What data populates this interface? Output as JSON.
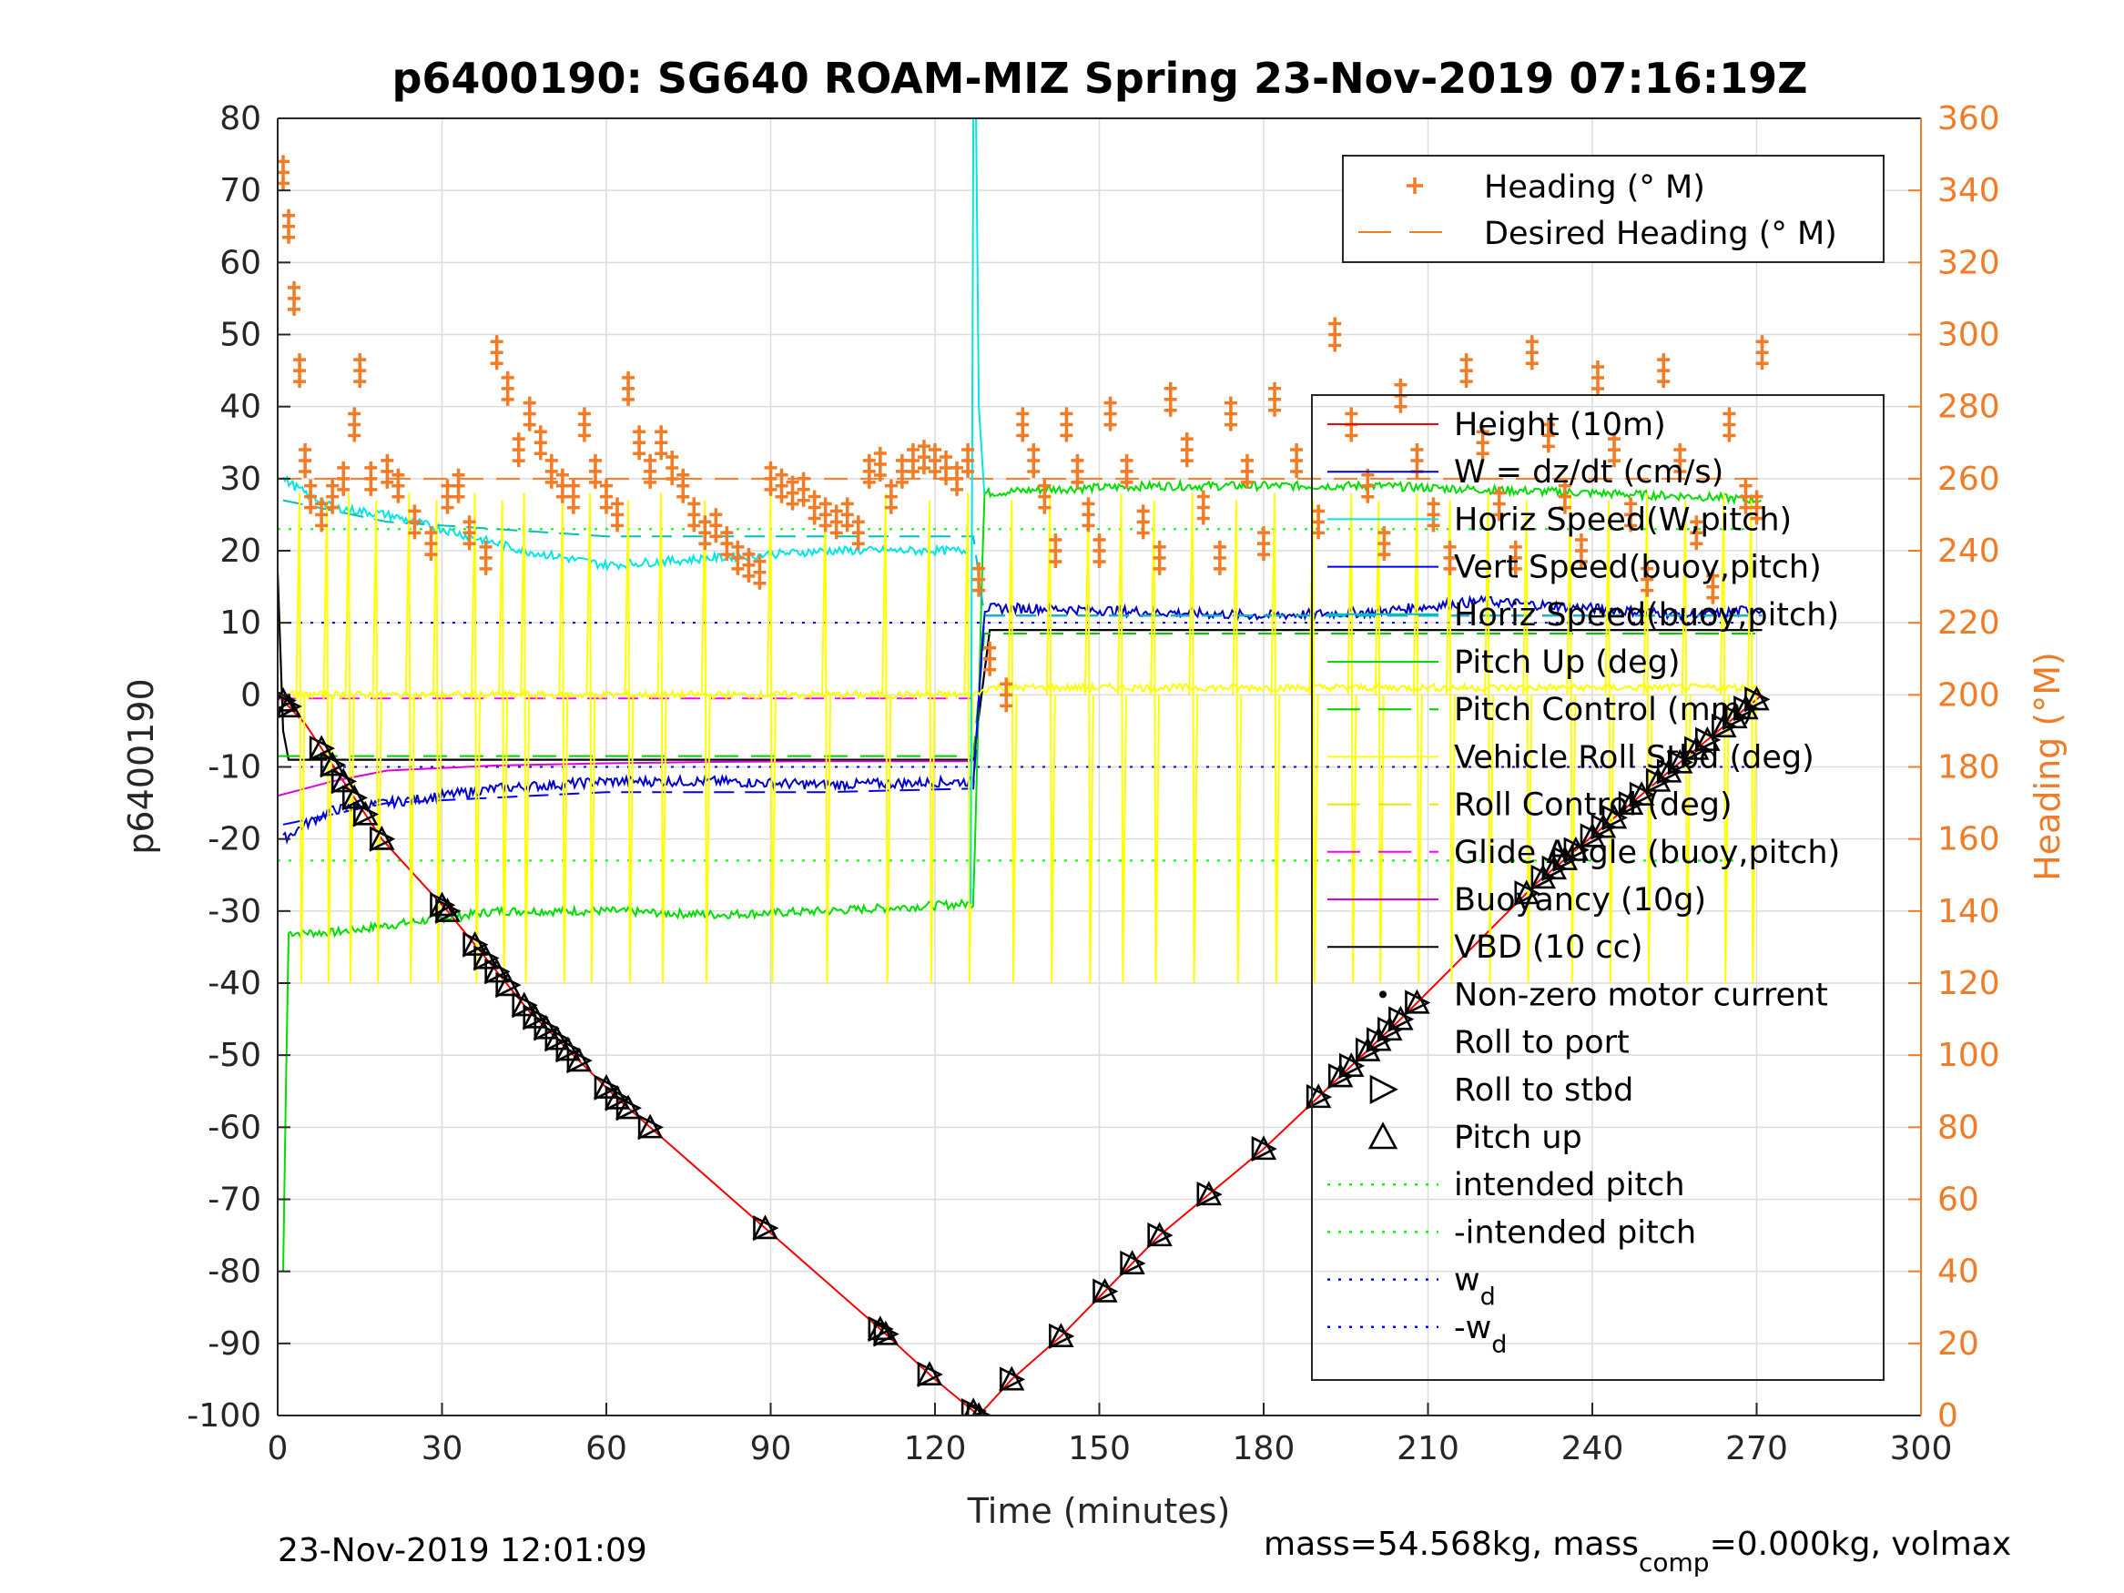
{
  "chart_data": {
    "type": "line",
    "title": "p6400190: SG640 ROAM-MIZ Spring 23-Nov-2019 07:16:19Z",
    "xlabel": "Time (minutes)",
    "ylabel": "p6400190",
    "y2label": "Heading (°M)",
    "xlim": [
      0,
      300
    ],
    "ylim": [
      -100,
      80
    ],
    "y2lim": [
      0,
      360
    ],
    "xticks": [
      "0",
      "30",
      "60",
      "90",
      "120",
      "150",
      "180",
      "210",
      "240",
      "270",
      "300"
    ],
    "yticks": [
      "80",
      "70",
      "60",
      "50",
      "40",
      "30",
      "20",
      "10",
      "0",
      "-10",
      "-20",
      "-30",
      "-40",
      "-50",
      "-60",
      "-70",
      "-80",
      "-90",
      "-100"
    ],
    "y2ticks": [
      "360",
      "340",
      "320",
      "300",
      "280",
      "260",
      "240",
      "220",
      "200",
      "180",
      "160",
      "140",
      "120",
      "100",
      "80",
      "60",
      "40",
      "20",
      "0"
    ],
    "grid": true,
    "footer_left": "23-Nov-2019 12:01:09",
    "footer_right": {
      "prefix": "mass=54.568kg, mass",
      "sub": "comp",
      "suffix": "=0.000kg, volmax"
    },
    "legend_heading": {
      "placement": "top-right",
      "entries": [
        "Heading (° M)",
        "Desired Heading (° M)"
      ]
    },
    "legend_main": {
      "placement": "right",
      "entries": [
        "Height (10m)",
        "W = dz/dt (cm/s)",
        "Horiz Speed(W,pitch)",
        "Vert Speed(buoy,pitch)",
        "Horiz Speed(buoy,pitch)",
        "Pitch Up (deg)",
        "Pitch Control (mm)",
        "Vehicle Roll Stbd (deg)",
        "Roll Control (deg)",
        "Glide Angle (buoy,pitch)",
        "Buoyancy (10g)",
        "VBD (10 cc)",
        "Non-zero motor current",
        "Roll to port",
        "Roll to stbd",
        "Pitch up",
        "intended pitch",
        "-intended pitch",
        "w",
        "-w"
      ],
      "w_subscript": "d"
    },
    "colors": {
      "height": "#ff0000",
      "w": "#0000cd",
      "horiz_w": "#00e5e5",
      "vert_buoy": "#0000ff",
      "horiz_buoy": "#00bfbf",
      "pitch": "#00dd00",
      "pitch_ctrl": "#00cc00",
      "roll": "#ffff00",
      "roll_ctrl": "#e6e600",
      "glide": "#ff00ff",
      "buoyancy": "#dd00dd",
      "vbd": "#000000",
      "heading": "#f27b26",
      "desired_heading": "#f27b26",
      "intended": "#00ff00",
      "wd": "#0000ff"
    },
    "series": [
      {
        "name": "Height (10m)",
        "x": [
          0,
          5,
          19,
          31,
          46,
          62,
          89,
          110,
          120,
          128,
          134,
          143,
          161,
          180,
          205,
          230,
          255,
          271
        ],
        "values": [
          0,
          -4,
          -20,
          -30,
          -44,
          -56,
          -74,
          -88,
          -95,
          -100,
          -95,
          -89,
          -75,
          -63,
          -45,
          -26,
          -10,
          0
        ]
      },
      {
        "name": "VBD (10 cc)",
        "x": [
          0,
          1,
          2,
          127,
          130,
          271
        ],
        "values": [
          17,
          -5,
          -9,
          -9,
          9,
          9
        ]
      },
      {
        "name": "Buoyancy (10g)",
        "x": [
          0,
          5,
          10,
          20,
          40,
          60,
          80,
          100,
          127
        ],
        "values": [
          -14,
          -13,
          -12,
          -10.5,
          -9.8,
          -9.5,
          -9.3,
          -9.2,
          -9.2
        ]
      },
      {
        "name": "Glide Angle (buoy,pitch)",
        "x": [
          0,
          127
        ],
        "values": [
          -0.5,
          -0.5
        ]
      },
      {
        "name": "Pitch Up (deg)",
        "x": [
          2,
          10,
          20,
          30,
          40,
          60,
          80,
          100,
          126,
          127,
          129,
          140,
          160,
          180,
          200,
          220,
          240,
          260,
          271
        ],
        "values": [
          -33,
          -33,
          -32,
          -31,
          -30,
          -30,
          -30.5,
          -30,
          -29,
          -29,
          28,
          28.5,
          29,
          29,
          29,
          28.5,
          28,
          27.5,
          27
        ]
      },
      {
        "name": "Pitch Control (mm)",
        "x": [
          0,
          127,
          129,
          271
        ],
        "values": [
          -8.5,
          -8.5,
          8.5,
          8.5
        ]
      },
      {
        "name": "W = dz/dt (cm/s)",
        "x": [
          1,
          5,
          10,
          20,
          40,
          60,
          80,
          100,
          127,
          129,
          140,
          160,
          180,
          200,
          220,
          240,
          260,
          271
        ],
        "values": [
          -20,
          -18,
          -16,
          -15,
          -13,
          -12,
          -12,
          -12.5,
          -12,
          12,
          12,
          11.5,
          11,
          11.5,
          13,
          12,
          11,
          12
        ]
      },
      {
        "name": "Vert Speed(buoy,pitch)",
        "x": [
          1,
          20,
          60,
          100,
          127,
          129,
          200,
          271
        ],
        "values": [
          -18,
          -15,
          -13.5,
          -13.5,
          -13,
          11,
          11,
          11
        ]
      },
      {
        "name": "Horiz Speed(W,pitch)",
        "x": [
          1,
          5,
          10,
          20,
          30,
          45,
          60,
          80,
          100,
          126
        ],
        "values": [
          30,
          28,
          26,
          25,
          23,
          20,
          18,
          19,
          20,
          20
        ]
      },
      {
        "name": "Horiz Speed(buoy,pitch)",
        "x": [
          1,
          20,
          60,
          127,
          129,
          271
        ],
        "values": [
          27,
          24,
          22,
          22,
          11,
          11
        ]
      },
      {
        "name": "Vehicle Roll Stbd (deg)",
        "x": [
          0,
          127,
          130,
          271
        ],
        "values": [
          0,
          0,
          1,
          1
        ]
      }
    ],
    "heading_points_deg": [
      [
        1,
        345
      ],
      [
        2,
        330
      ],
      [
        3,
        310
      ],
      [
        4,
        290
      ],
      [
        5,
        265
      ],
      [
        6,
        255
      ],
      [
        8,
        250
      ],
      [
        10,
        255
      ],
      [
        12,
        260
      ],
      [
        14,
        275
      ],
      [
        15,
        290
      ],
      [
        17,
        260
      ],
      [
        20,
        262
      ],
      [
        22,
        258
      ],
      [
        25,
        248
      ],
      [
        28,
        242
      ],
      [
        31,
        255
      ],
      [
        33,
        258
      ],
      [
        35,
        245
      ],
      [
        38,
        238
      ],
      [
        40,
        295
      ],
      [
        42,
        285
      ],
      [
        44,
        268
      ],
      [
        46,
        278
      ],
      [
        48,
        270
      ],
      [
        50,
        262
      ],
      [
        52,
        258
      ],
      [
        54,
        255
      ],
      [
        56,
        275
      ],
      [
        58,
        262
      ],
      [
        60,
        255
      ],
      [
        62,
        250
      ],
      [
        64,
        285
      ],
      [
        66,
        270
      ],
      [
        68,
        262
      ],
      [
        70,
        270
      ],
      [
        72,
        263
      ],
      [
        74,
        258
      ],
      [
        76,
        250
      ],
      [
        78,
        245
      ],
      [
        80,
        247
      ],
      [
        82,
        242
      ],
      [
        84,
        238
      ],
      [
        86,
        236
      ],
      [
        88,
        234
      ],
      [
        90,
        260
      ],
      [
        92,
        258
      ],
      [
        94,
        256
      ],
      [
        96,
        257
      ],
      [
        98,
        252
      ],
      [
        100,
        250
      ],
      [
        102,
        248
      ],
      [
        104,
        250
      ],
      [
        106,
        245
      ],
      [
        108,
        262
      ],
      [
        110,
        264
      ],
      [
        112,
        255
      ],
      [
        114,
        262
      ],
      [
        116,
        265
      ],
      [
        118,
        266
      ],
      [
        120,
        265
      ],
      [
        122,
        263
      ],
      [
        124,
        260
      ],
      [
        126,
        265
      ],
      [
        128,
        232
      ],
      [
        130,
        210
      ],
      [
        133,
        200
      ],
      [
        136,
        275
      ],
      [
        138,
        265
      ],
      [
        140,
        255
      ],
      [
        142,
        240
      ],
      [
        144,
        275
      ],
      [
        146,
        262
      ],
      [
        148,
        250
      ],
      [
        150,
        240
      ],
      [
        152,
        278
      ],
      [
        155,
        262
      ],
      [
        158,
        248
      ],
      [
        161,
        238
      ],
      [
        163,
        282
      ],
      [
        166,
        268
      ],
      [
        169,
        252
      ],
      [
        172,
        238
      ],
      [
        174,
        278
      ],
      [
        177,
        262
      ],
      [
        180,
        242
      ],
      [
        182,
        282
      ],
      [
        186,
        265
      ],
      [
        190,
        248
      ],
      [
        193,
        300
      ],
      [
        196,
        275
      ],
      [
        199,
        258
      ],
      [
        202,
        242
      ],
      [
        205,
        283
      ],
      [
        208,
        265
      ],
      [
        211,
        250
      ],
      [
        214,
        238
      ],
      [
        217,
        290
      ],
      [
        220,
        270
      ],
      [
        223,
        253
      ],
      [
        226,
        238
      ],
      [
        229,
        295
      ],
      [
        232,
        272
      ],
      [
        235,
        255
      ],
      [
        238,
        240
      ],
      [
        241,
        288
      ],
      [
        244,
        268
      ],
      [
        247,
        250
      ],
      [
        250,
        232
      ],
      [
        253,
        290
      ],
      [
        256,
        265
      ],
      [
        259,
        245
      ],
      [
        262,
        230
      ],
      [
        265,
        275
      ],
      [
        268,
        255
      ],
      [
        270,
        252
      ],
      [
        271,
        295
      ]
    ],
    "desired_heading_deg": 260,
    "intended_pitch": [
      23,
      -23
    ],
    "wd": [
      10,
      -10
    ]
  }
}
